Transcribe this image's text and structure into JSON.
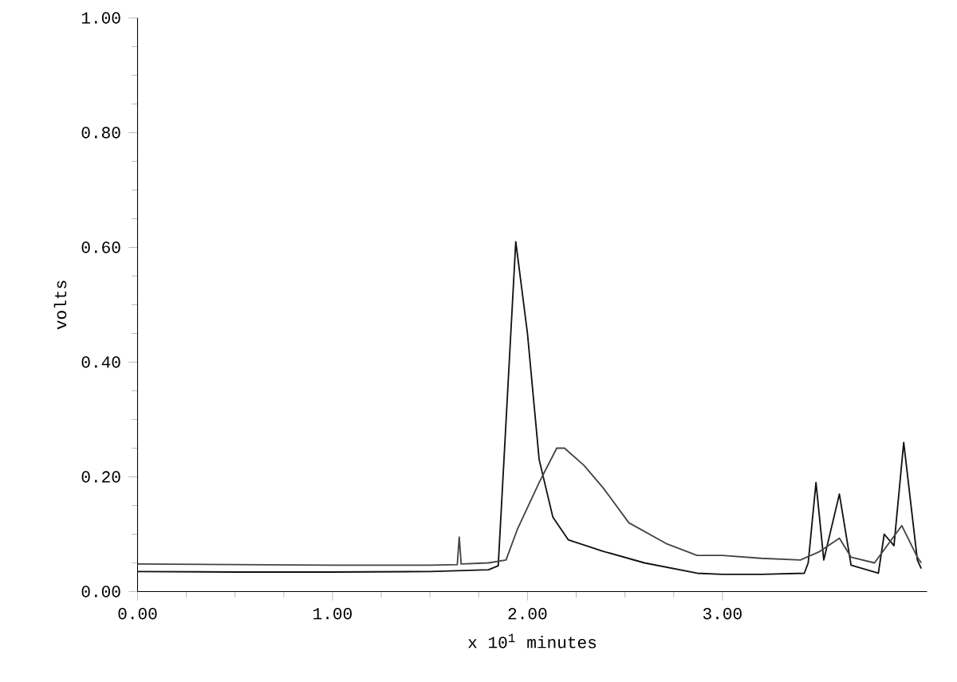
{
  "chart_data": {
    "type": "line",
    "xlabel": "x 10$^{1}$ minutes",
    "ylabel": "volts",
    "xlim": [
      0,
      4.05
    ],
    "ylim": [
      0,
      1.0
    ],
    "xticks": [
      {
        "value": 0,
        "label": "0.00"
      },
      {
        "value": 1,
        "label": "1.00"
      },
      {
        "value": 2,
        "label": "2.00"
      },
      {
        "value": 3,
        "label": "3.00"
      }
    ],
    "yticks": [
      {
        "value": 0,
        "label": "0.00"
      },
      {
        "value": 0.2,
        "label": "0.20"
      },
      {
        "value": 0.4,
        "label": "0.40"
      },
      {
        "value": 0.6,
        "label": "0.60"
      },
      {
        "value": 0.8,
        "label": "0.80"
      },
      {
        "value": 1.0,
        "label": "1.00"
      }
    ],
    "grid": false,
    "marker": "none",
    "line_style": "solid",
    "series": [
      {
        "color": "#111111",
        "x": [
          0,
          0.5,
          1.0,
          1.5,
          1.8,
          1.85,
          1.94,
          2.0,
          2.06,
          2.13,
          2.21,
          2.39,
          2.6,
          2.87,
          3.0,
          3.2,
          3.42,
          3.44,
          3.48,
          3.52,
          3.6,
          3.66,
          3.8,
          3.83,
          3.88,
          3.93,
          4.0,
          4.02
        ],
        "values": [
          0.035,
          0.034,
          0.034,
          0.035,
          0.038,
          0.045,
          0.61,
          0.45,
          0.23,
          0.13,
          0.09,
          0.07,
          0.05,
          0.032,
          0.03,
          0.03,
          0.032,
          0.05,
          0.19,
          0.055,
          0.17,
          0.046,
          0.032,
          0.1,
          0.08,
          0.26,
          0.055,
          0.04
        ]
      },
      {
        "color": "#444444",
        "x": [
          0,
          0.5,
          1.0,
          1.5,
          1.64,
          1.65,
          1.66,
          1.8,
          1.89,
          1.95,
          2.06,
          2.15,
          2.19,
          2.29,
          2.39,
          2.52,
          2.71,
          2.87,
          3.0,
          3.2,
          3.4,
          3.5,
          3.6,
          3.66,
          3.78,
          3.92,
          4.0,
          4.02
        ],
        "values": [
          0.048,
          0.047,
          0.046,
          0.046,
          0.047,
          0.095,
          0.048,
          0.05,
          0.055,
          0.11,
          0.19,
          0.25,
          0.25,
          0.22,
          0.18,
          0.12,
          0.084,
          0.063,
          0.063,
          0.058,
          0.055,
          0.07,
          0.093,
          0.06,
          0.05,
          0.115,
          0.06,
          0.05
        ]
      }
    ]
  }
}
